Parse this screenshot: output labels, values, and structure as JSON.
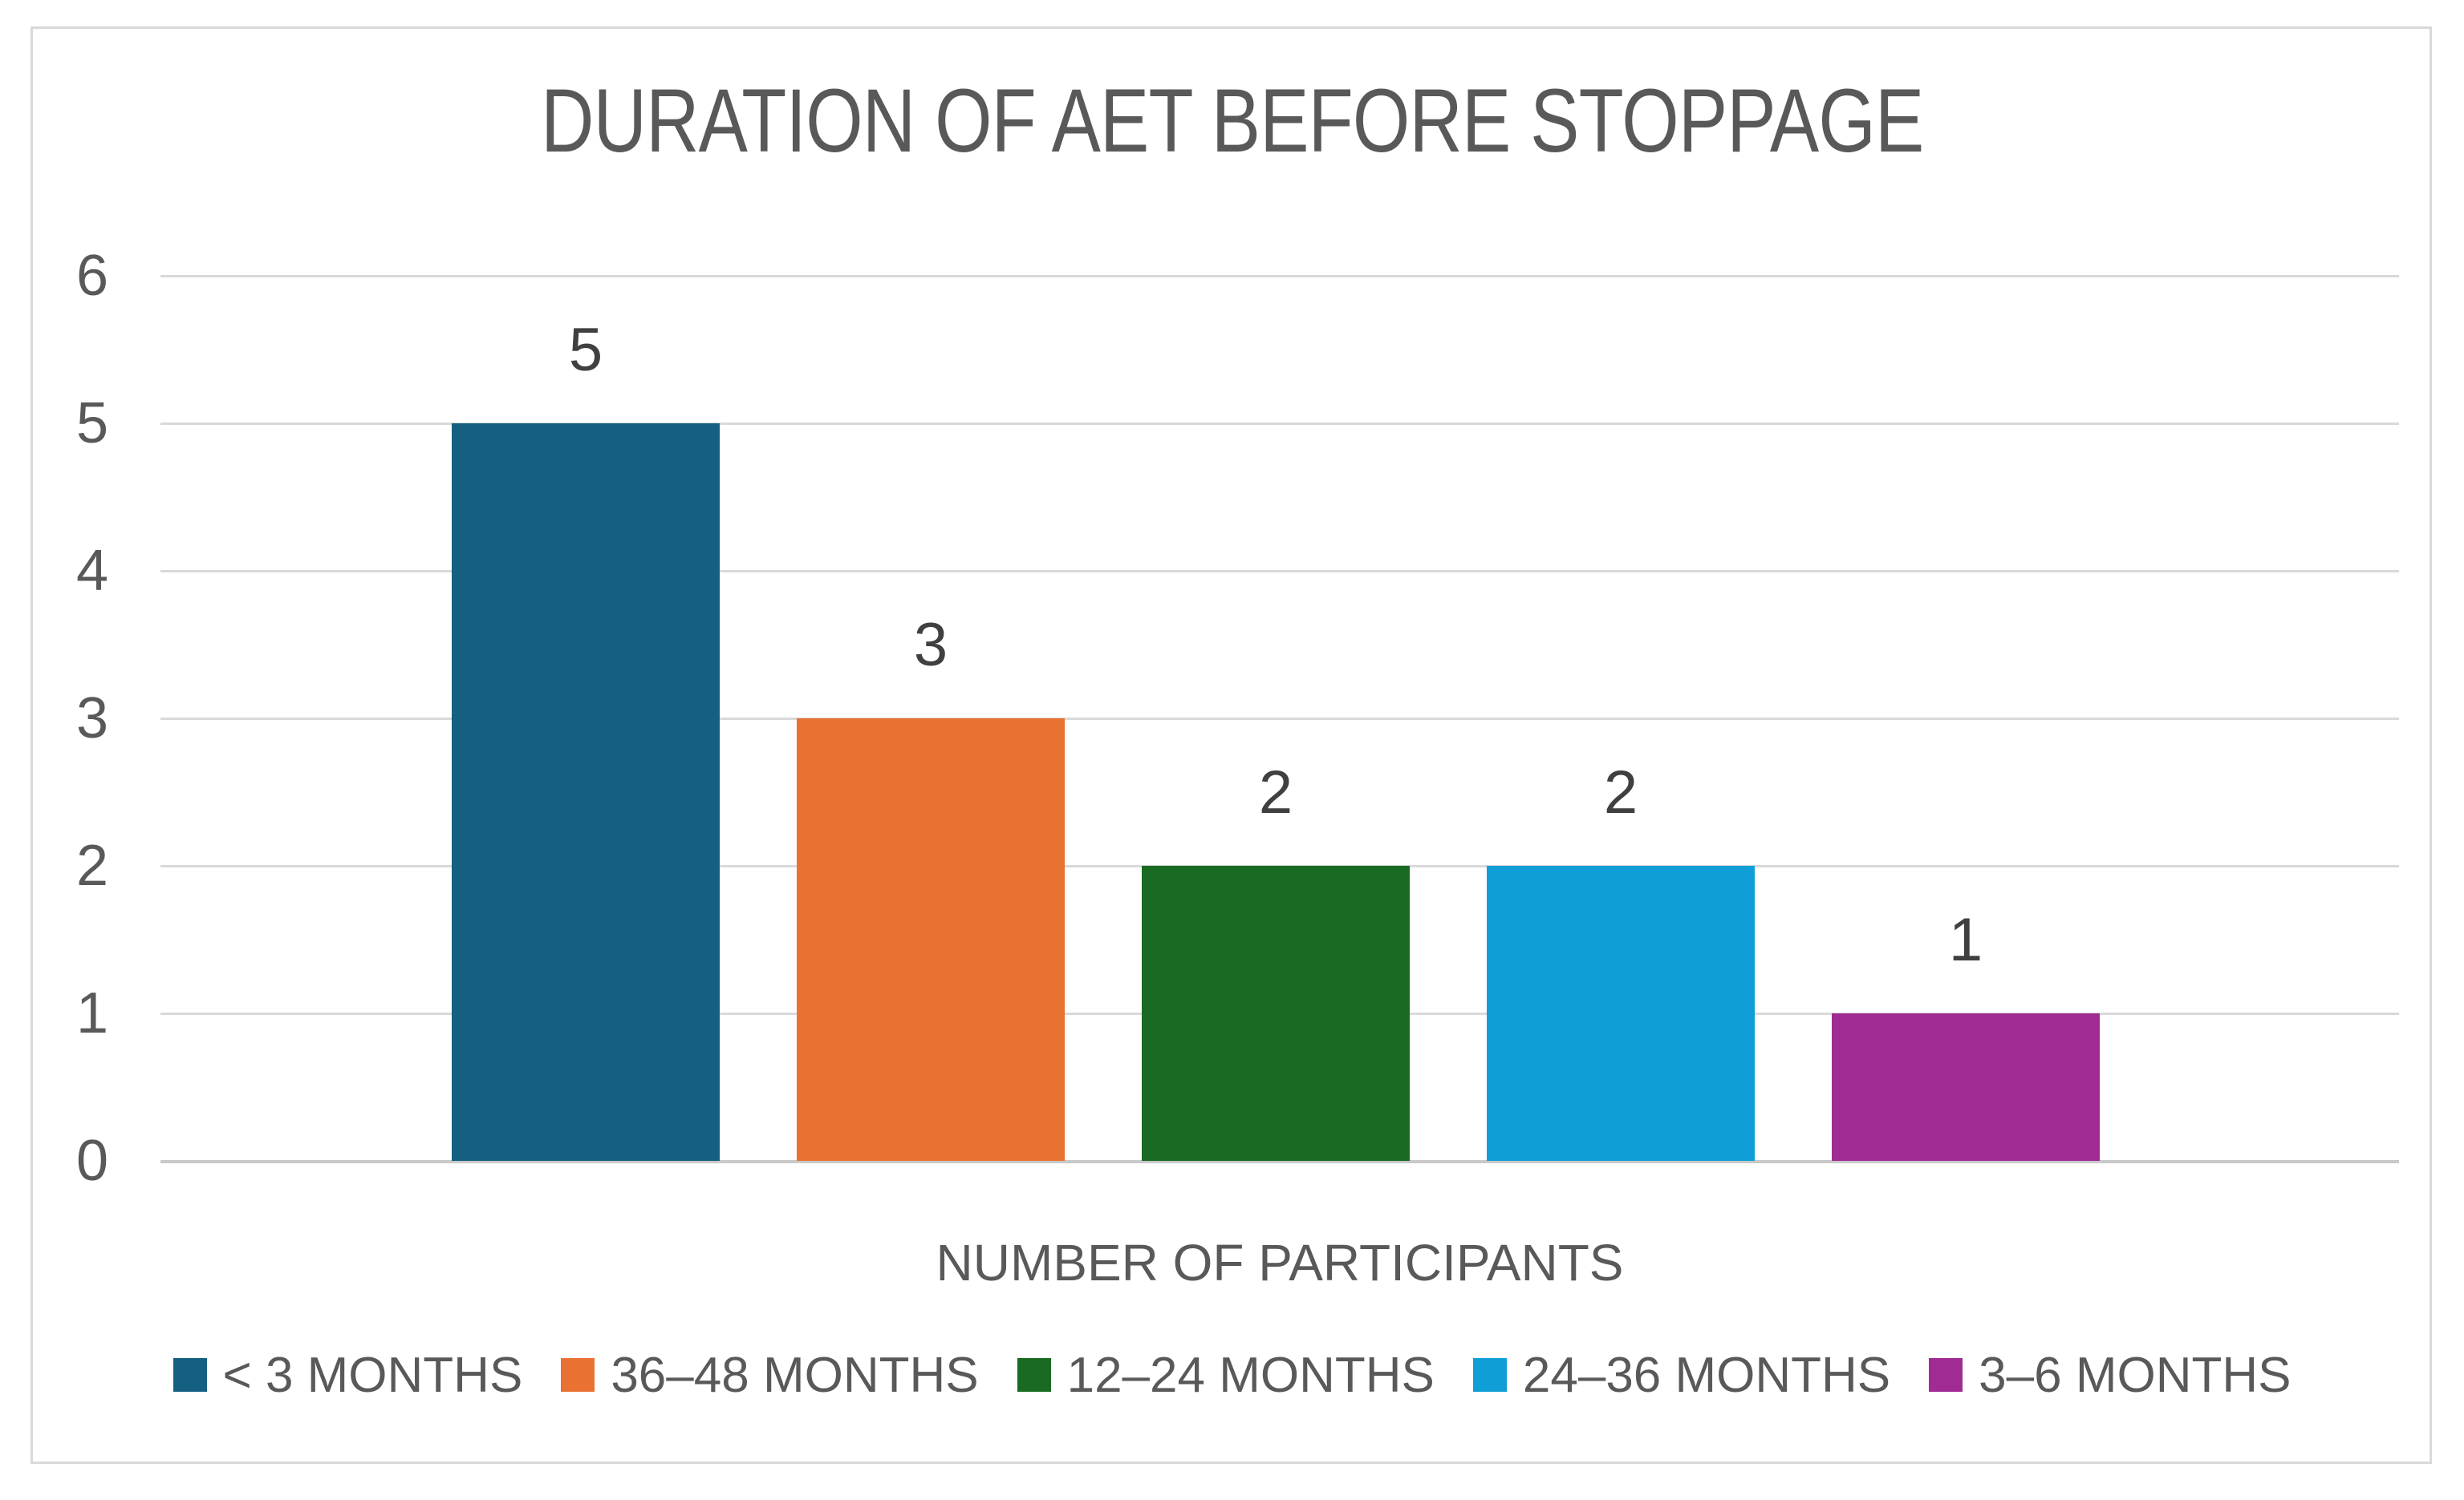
{
  "chart_data": {
    "type": "bar",
    "title": "DURATION OF AET BEFORE STOPPAGE",
    "xlabel": "NUMBER OF PARTICIPANTS",
    "ylabel": "",
    "ylim": [
      0,
      6
    ],
    "yticks": [
      0,
      1,
      2,
      3,
      4,
      5,
      6
    ],
    "grid": true,
    "legend_position": "bottom",
    "categories": [
      "< 3 MONTHS",
      "36–48 MONTHS",
      "12–24 MONTHS",
      "24–36 MONTHS",
      "3–6 MONTHS"
    ],
    "values": [
      5,
      3,
      2,
      2,
      1
    ],
    "data_labels": [
      "5",
      "3",
      "2",
      "2",
      "1"
    ],
    "series_colors": [
      "#156082",
      "#E97132",
      "#196B24",
      "#0F9ED5",
      "#A02B93"
    ]
  },
  "styles": {
    "text_color": "#595959",
    "data_label_color": "#404040",
    "gridline_color": "#D9D9D9",
    "axis_line_color": "#C9C9C9",
    "border_color": "#D9D9D9",
    "background": "#FFFFFF"
  }
}
